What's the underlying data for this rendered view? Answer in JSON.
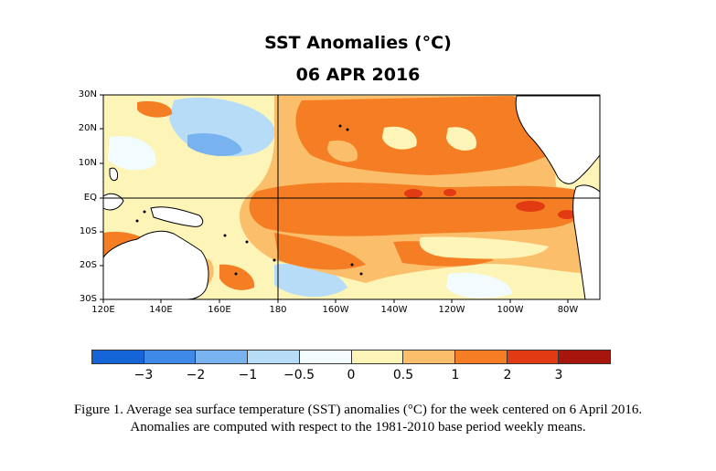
{
  "title": "SST Anomalies (°C)",
  "date": "06 APR 2016",
  "lat_labels": [
    "30N",
    "20N",
    "10N",
    "EQ",
    "10S",
    "20S",
    "30S"
  ],
  "lon_labels": [
    "120E",
    "140E",
    "160E",
    "180",
    "160W",
    "140W",
    "120W",
    "100W",
    "80W"
  ],
  "colorbar": {
    "labels": [
      "−3",
      "−2",
      "−1",
      "−0.5",
      "0",
      "0.5",
      "1",
      "2",
      "3"
    ],
    "colors": [
      "#1565d8",
      "#3f8ae8",
      "#78b3f0",
      "#b6dcf8",
      "#f2fbfe",
      "#fdf4b8",
      "#fbbf6c",
      "#f57e24",
      "#e23a12",
      "#a8150c"
    ]
  },
  "caption": {
    "line1": "Figure 1. Average sea surface temperature (SST) anomalies (°C) for the week centered on 6 April 2016.",
    "line2": "Anomalies  are computed with respect to the 1981-2010 base period weekly means."
  }
}
